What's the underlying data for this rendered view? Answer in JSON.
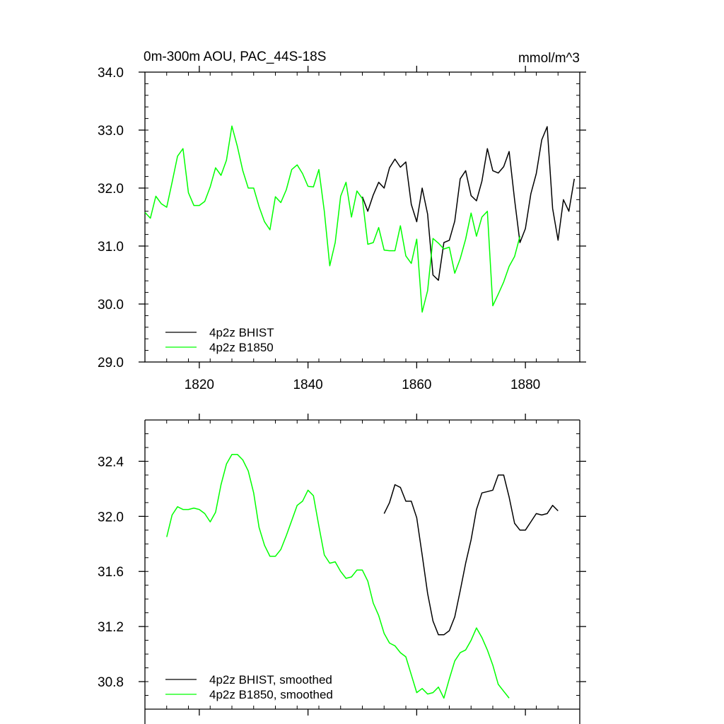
{
  "chart_data": [
    {
      "type": "line",
      "title": "0m-300m AOU, PAC_44S-18S",
      "units": "mmol/m^3",
      "xlim": [
        1810,
        1890
      ],
      "ylim": [
        29.0,
        34.0
      ],
      "x_ticks": [
        1820,
        1840,
        1860,
        1880
      ],
      "x_tick_labels": [
        "1820",
        "1840",
        "1860",
        "1880"
      ],
      "y_ticks": [
        29.0,
        30.0,
        31.0,
        32.0,
        33.0,
        34.0
      ],
      "y_tick_labels": [
        "29.0",
        "30.0",
        "31.0",
        "32.0",
        "33.0",
        "34.0"
      ],
      "legend": "bottom-left",
      "series": [
        {
          "name": "4p2z BHIST",
          "color": "#000000",
          "x": [
            1850,
            1851,
            1852,
            1853,
            1854,
            1855,
            1856,
            1857,
            1858,
            1859,
            1860,
            1861,
            1862,
            1863,
            1864,
            1865,
            1866,
            1867,
            1868,
            1869,
            1870,
            1871,
            1872,
            1873,
            1874,
            1875,
            1876,
            1877,
            1878,
            1879,
            1880,
            1881,
            1882,
            1883,
            1884,
            1885,
            1886,
            1887,
            1888,
            1889
          ],
          "values": [
            31.85,
            31.6,
            31.88,
            32.1,
            32.0,
            32.35,
            32.5,
            32.36,
            32.45,
            31.72,
            31.42,
            32.0,
            31.55,
            30.5,
            30.41,
            31.06,
            31.1,
            31.43,
            32.16,
            32.3,
            31.87,
            31.78,
            32.12,
            32.68,
            32.3,
            32.26,
            32.37,
            32.63,
            31.8,
            31.06,
            31.3,
            31.9,
            32.25,
            32.83,
            33.06,
            31.65,
            31.1,
            31.8,
            31.6,
            32.16
          ]
        },
        {
          "name": "4p2z B1850",
          "color": "#00ff00",
          "x": [
            1810,
            1811,
            1812,
            1813,
            1814,
            1815,
            1816,
            1817,
            1818,
            1819,
            1820,
            1821,
            1822,
            1823,
            1824,
            1825,
            1826,
            1827,
            1828,
            1829,
            1830,
            1831,
            1832,
            1833,
            1834,
            1835,
            1836,
            1837,
            1838,
            1839,
            1840,
            1841,
            1842,
            1843,
            1844,
            1845,
            1846,
            1847,
            1848,
            1849,
            1850,
            1851,
            1852,
            1853,
            1854,
            1855,
            1856,
            1857,
            1858,
            1859,
            1860,
            1861,
            1862,
            1863,
            1864,
            1865,
            1866,
            1867,
            1868,
            1869,
            1870,
            1871,
            1872,
            1873,
            1874,
            1875,
            1876,
            1877,
            1878,
            1879
          ],
          "values": [
            31.58,
            31.48,
            31.86,
            31.73,
            31.67,
            32.1,
            32.55,
            32.68,
            31.92,
            31.7,
            31.7,
            31.77,
            32.02,
            32.35,
            32.22,
            32.48,
            33.07,
            32.72,
            32.3,
            32.0,
            32.0,
            31.68,
            31.42,
            31.28,
            31.85,
            31.75,
            31.97,
            32.32,
            32.4,
            32.25,
            32.03,
            32.02,
            32.32,
            31.6,
            30.66,
            31.06,
            31.86,
            32.1,
            31.5,
            31.95,
            31.82,
            31.03,
            31.06,
            31.32,
            30.93,
            30.92,
            30.92,
            31.35,
            30.83,
            30.7,
            31.12,
            29.86,
            30.23,
            31.13,
            31.05,
            30.95,
            30.98,
            30.53,
            30.78,
            31.12,
            31.57,
            31.17,
            31.5,
            31.6,
            29.97,
            30.17,
            30.38,
            30.65,
            30.82,
            31.17
          ]
        }
      ]
    },
    {
      "type": "line",
      "title": "",
      "xlim": [
        1810,
        1890
      ],
      "ylim": [
        30.6,
        32.7
      ],
      "x_ticks": [
        1820,
        1840,
        1860,
        1880
      ],
      "y_ticks": [
        30.8,
        31.2,
        31.6,
        32.0,
        32.4
      ],
      "y_tick_labels": [
        "30.8",
        "31.2",
        "31.6",
        "32.0",
        "32.4"
      ],
      "legend": "bottom-left",
      "series": [
        {
          "name": "4p2z BHIST, smoothed",
          "color": "#000000",
          "x": [
            1854,
            1855,
            1856,
            1857,
            1858,
            1859,
            1860,
            1861,
            1862,
            1863,
            1864,
            1865,
            1866,
            1867,
            1868,
            1869,
            1870,
            1871,
            1872,
            1873,
            1874,
            1875,
            1876,
            1877,
            1878,
            1879,
            1880,
            1881,
            1882,
            1883,
            1884,
            1885,
            1886
          ],
          "values": [
            32.02,
            32.1,
            32.23,
            32.21,
            32.11,
            32.11,
            31.99,
            31.72,
            31.44,
            31.24,
            31.14,
            31.14,
            31.17,
            31.27,
            31.46,
            31.66,
            31.83,
            32.05,
            32.17,
            32.18,
            32.19,
            32.3,
            32.3,
            32.14,
            31.95,
            31.9,
            31.9,
            31.96,
            32.02,
            32.01,
            32.02,
            32.08,
            32.04
          ]
        },
        {
          "name": "4p2z B1850, smoothed",
          "color": "#00ff00",
          "x": [
            1814,
            1815,
            1816,
            1817,
            1818,
            1819,
            1820,
            1821,
            1822,
            1823,
            1824,
            1825,
            1826,
            1827,
            1828,
            1829,
            1830,
            1831,
            1832,
            1833,
            1834,
            1835,
            1836,
            1837,
            1838,
            1839,
            1840,
            1841,
            1842,
            1843,
            1844,
            1845,
            1846,
            1847,
            1848,
            1849,
            1850,
            1851,
            1852,
            1853,
            1854,
            1855,
            1856,
            1857,
            1858,
            1859,
            1860,
            1861,
            1862,
            1863,
            1864,
            1865,
            1866,
            1867,
            1868,
            1869,
            1870,
            1871,
            1872,
            1873,
            1874,
            1875,
            1876,
            1877
          ],
          "values": [
            31.85,
            32.01,
            32.07,
            32.05,
            32.05,
            32.06,
            32.05,
            32.02,
            31.96,
            32.03,
            32.23,
            32.38,
            32.45,
            32.45,
            32.41,
            32.33,
            32.17,
            31.92,
            31.79,
            31.71,
            31.71,
            31.76,
            31.86,
            31.97,
            32.08,
            32.11,
            32.19,
            32.15,
            31.93,
            31.72,
            31.66,
            31.67,
            31.6,
            31.55,
            31.56,
            31.61,
            31.61,
            31.53,
            31.37,
            31.28,
            31.15,
            31.08,
            31.06,
            31.01,
            30.98,
            30.85,
            30.72,
            30.75,
            30.71,
            30.72,
            30.76,
            30.68,
            30.82,
            30.95,
            31.01,
            31.03,
            31.1,
            31.19,
            31.12,
            31.03,
            30.92,
            30.78,
            30.73,
            30.68
          ]
        }
      ]
    }
  ]
}
